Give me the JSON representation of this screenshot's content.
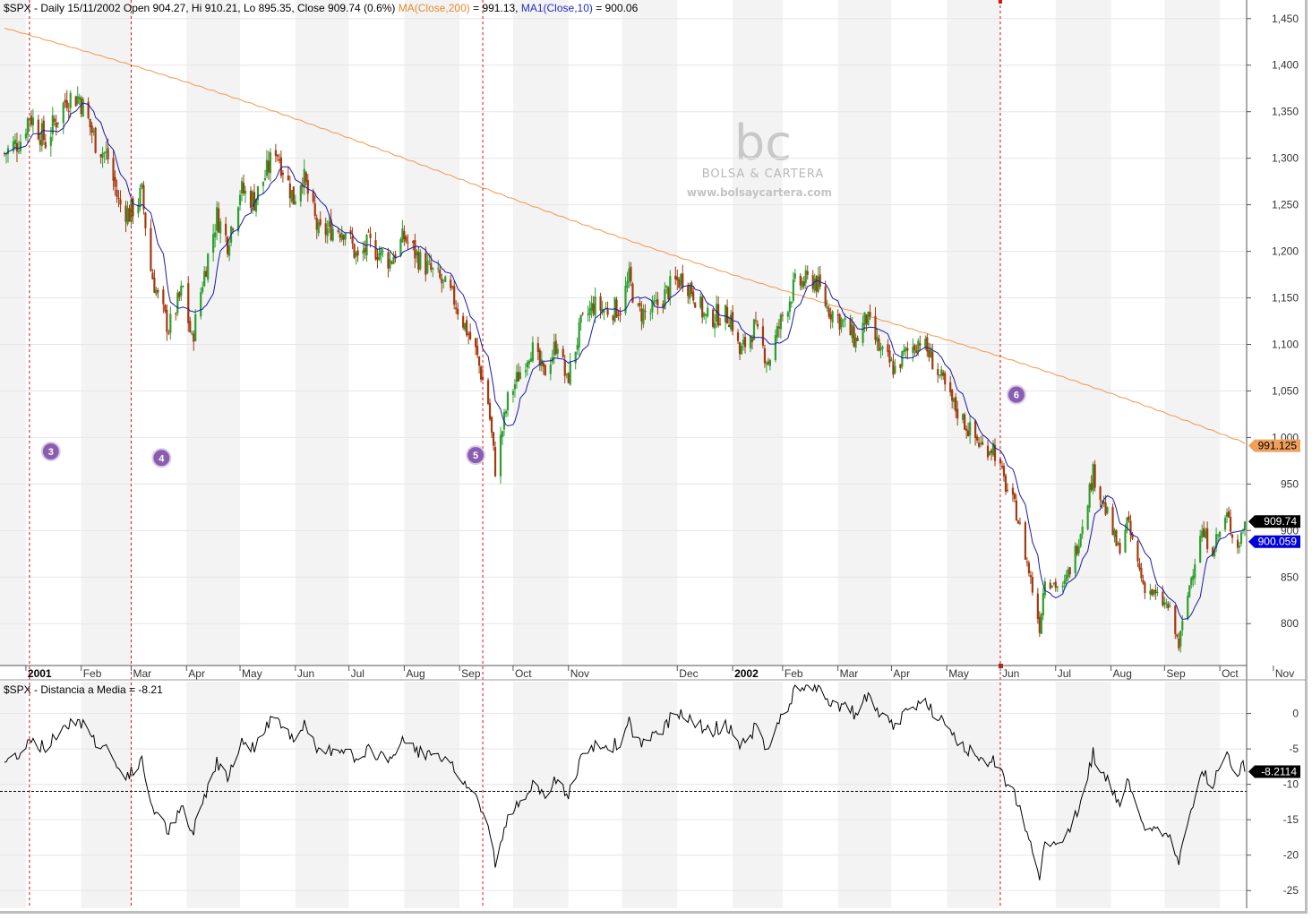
{
  "header": {
    "symbol_line": "$SPX - Daily 15/11/2002 Open 904.27, Hi 910.21, Lo 895.35, Close 909.74 (0.6%)",
    "ma200_label": "MA(Close,200)",
    "ma200_value": " = 991.13,",
    "ma10_label": "MA1(Close,10)",
    "ma10_value": " = 900.06"
  },
  "indicator_header": "$SPX - Distancia a Media = -8.21",
  "watermark": {
    "logo": "bc",
    "brand": "BOLSA & CARTERA",
    "url": "www.bolsaycartera.com"
  },
  "colors": {
    "up_candle": "#2e9e2e",
    "down_candle": "#a23a10",
    "ma200": "#f0a05a",
    "ma10": "#1a1aa8",
    "signal_line": "#e01010",
    "badge": "#8a5db0",
    "band": "#f3f3f3"
  },
  "price_labels": {
    "close": "909.74",
    "ma10": "900.059",
    "ma200": "991.125"
  },
  "indicator_label": "-8.2114",
  "chart_data": [
    {
      "type": "candlestick",
      "title": "$SPX - Daily 15/11/2002",
      "ylim": [
        755,
        1470
      ],
      "yticks": [
        800,
        850,
        900,
        950,
        1000,
        1050,
        1100,
        1150,
        1200,
        1250,
        1300,
        1350,
        1400,
        1450
      ],
      "ytick_labels": [
        "800",
        "850",
        "900",
        "950",
        "1,000",
        "1,050",
        "1,100",
        "1,150",
        "1,200",
        "1,250",
        "1,300",
        "1,350",
        "1,400",
        "1,450"
      ],
      "month_ticks": [
        "2001",
        "Feb",
        "Mar",
        "Apr",
        "May",
        "Jun",
        "Jul",
        "Aug",
        "Sep",
        "Oct",
        "Nov",
        "Dec",
        "2002",
        "Feb",
        "Mar",
        "Apr",
        "May",
        "Jun",
        "Jul",
        "Aug",
        "Sep",
        "Oct",
        "Nov"
      ],
      "x_range": [
        "2000-12-20",
        "2002-11-15"
      ],
      "close_anchors": [
        [
          "2000-12-20",
          1305
        ],
        [
          "2000-12-29",
          1320
        ],
        [
          "2001-01-03",
          1347
        ],
        [
          "2001-01-12",
          1318
        ],
        [
          "2001-01-24",
          1365
        ],
        [
          "2001-01-31",
          1366
        ],
        [
          "2001-02-09",
          1318
        ],
        [
          "2001-02-16",
          1300
        ],
        [
          "2001-02-22",
          1252
        ],
        [
          "2001-02-28",
          1240
        ],
        [
          "2001-03-07",
          1262
        ],
        [
          "2001-03-12",
          1180
        ],
        [
          "2001-03-16",
          1150
        ],
        [
          "2001-03-22",
          1117
        ],
        [
          "2001-03-30",
          1160
        ],
        [
          "2001-04-04",
          1103
        ],
        [
          "2001-04-10",
          1168
        ],
        [
          "2001-04-18",
          1238
        ],
        [
          "2001-04-24",
          1210
        ],
        [
          "2001-05-01",
          1266
        ],
        [
          "2001-05-09",
          1255
        ],
        [
          "2001-05-16",
          1285
        ],
        [
          "2001-05-21",
          1312
        ],
        [
          "2001-05-31",
          1256
        ],
        [
          "2001-06-05",
          1283
        ],
        [
          "2001-06-14",
          1219
        ],
        [
          "2001-06-22",
          1225
        ],
        [
          "2001-06-29",
          1224
        ],
        [
          "2001-07-06",
          1190
        ],
        [
          "2001-07-12",
          1208
        ],
        [
          "2001-07-24",
          1190
        ],
        [
          "2001-08-01",
          1215
        ],
        [
          "2001-08-10",
          1190
        ],
        [
          "2001-08-20",
          1171
        ],
        [
          "2001-08-29",
          1148
        ],
        [
          "2001-09-10",
          1092
        ],
        [
          "2001-09-17",
          1038
        ],
        [
          "2001-09-21",
          966
        ],
        [
          "2001-09-28",
          1040
        ],
        [
          "2001-10-05",
          1071
        ],
        [
          "2001-10-11",
          1097
        ],
        [
          "2001-10-18",
          1068
        ],
        [
          "2001-10-26",
          1104
        ],
        [
          "2001-10-31",
          1059
        ],
        [
          "2001-11-08",
          1120
        ],
        [
          "2001-11-15",
          1142
        ],
        [
          "2001-11-21",
          1137
        ],
        [
          "2001-11-30",
          1139
        ],
        [
          "2001-12-05",
          1170
        ],
        [
          "2001-12-10",
          1134
        ],
        [
          "2001-12-17",
          1134
        ],
        [
          "2001-12-20",
          1140
        ],
        [
          "2001-12-28",
          1161
        ],
        [
          "2002-01-04",
          1172
        ],
        [
          "2002-01-10",
          1156
        ],
        [
          "2002-01-17",
          1127
        ],
        [
          "2002-01-24",
          1132
        ],
        [
          "2002-01-31",
          1130
        ],
        [
          "2002-02-05",
          1090
        ],
        [
          "2002-02-13",
          1118
        ],
        [
          "2002-02-21",
          1081
        ],
        [
          "2002-03-01",
          1131
        ],
        [
          "2002-03-08",
          1164
        ],
        [
          "2002-03-19",
          1170
        ],
        [
          "2002-03-26",
          1140
        ],
        [
          "2002-04-03",
          1125
        ],
        [
          "2002-04-11",
          1104
        ],
        [
          "2002-04-17",
          1128
        ],
        [
          "2002-04-25",
          1091
        ],
        [
          "2002-05-03",
          1073
        ],
        [
          "2002-05-08",
          1088
        ],
        [
          "2002-05-17",
          1106
        ],
        [
          "2002-05-24",
          1083
        ],
        [
          "2002-06-03",
          1040
        ],
        [
          "2002-06-14",
          1007
        ],
        [
          "2002-06-21",
          989
        ],
        [
          "2002-06-27",
          990
        ],
        [
          "2002-07-03",
          953
        ],
        [
          "2002-07-10",
          920
        ],
        [
          "2002-07-18",
          847
        ],
        [
          "2002-07-23",
          797
        ],
        [
          "2002-07-26",
          852
        ],
        [
          "2002-08-05",
          835
        ],
        [
          "2002-08-13",
          884
        ],
        [
          "2002-08-22",
          962
        ],
        [
          "2002-08-27",
          934
        ],
        [
          "2002-09-05",
          879
        ],
        [
          "2002-09-10",
          909
        ],
        [
          "2002-09-19",
          843
        ],
        [
          "2002-09-27",
          827
        ],
        [
          "2002-10-03",
          818
        ],
        [
          "2002-10-09",
          776
        ],
        [
          "2002-10-15",
          841
        ],
        [
          "2002-10-21",
          899
        ],
        [
          "2002-10-28",
          882
        ],
        [
          "2002-11-05",
          915
        ],
        [
          "2002-11-11",
          882
        ],
        [
          "2002-11-15",
          909.74
        ]
      ],
      "series": [
        {
          "name": "MA(Close,200)",
          "start": 1440,
          "end": 991.13
        },
        {
          "name": "MA1(Close,10)",
          "end": 900.06
        }
      ],
      "signal_dates": [
        "2001-01-03",
        "2001-03-01",
        "2001-09-14",
        "2002-07-01"
      ],
      "annotations": [
        {
          "label": "3",
          "date": "2001-01-15",
          "value": 985
        },
        {
          "label": "4",
          "date": "2001-03-18",
          "value": 978
        },
        {
          "label": "5",
          "date": "2001-09-10",
          "value": 981
        },
        {
          "label": "6",
          "date": "2002-07-10",
          "value": 1046
        }
      ]
    },
    {
      "type": "line",
      "title": "$SPX - Distancia a Media",
      "ylim": [
        -27.5,
        4.5
      ],
      "yticks": [
        0,
        -5,
        -10,
        -15,
        -20,
        -25
      ],
      "ytick_labels": [
        "0",
        "-5",
        "-10",
        "-15",
        "-20",
        "-25"
      ],
      "reference_line": -11,
      "last_value": -8.2114
    }
  ]
}
